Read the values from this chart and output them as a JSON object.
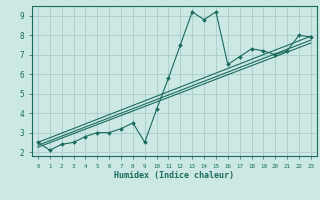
{
  "title": "",
  "xlabel": "Humidex (Indice chaleur)",
  "ylabel": "",
  "bg_color": "#cce8e4",
  "grid_color": "#aaccc8",
  "line_color": "#1a6b5a",
  "xlim": [
    -0.5,
    23.5
  ],
  "ylim": [
    1.8,
    9.5
  ],
  "xticks": [
    0,
    1,
    2,
    3,
    4,
    5,
    6,
    7,
    8,
    9,
    10,
    11,
    12,
    13,
    14,
    15,
    16,
    17,
    18,
    19,
    20,
    21,
    22,
    23
  ],
  "yticks": [
    2,
    3,
    4,
    5,
    6,
    7,
    8,
    9
  ],
  "curve_x": [
    0,
    1,
    2,
    3,
    4,
    5,
    6,
    7,
    8,
    9,
    10,
    11,
    12,
    13,
    14,
    15,
    16,
    17,
    18,
    19,
    20,
    21,
    22,
    23
  ],
  "curve_y": [
    2.5,
    2.1,
    2.4,
    2.5,
    2.8,
    3.0,
    3.0,
    3.2,
    3.5,
    2.5,
    4.2,
    5.8,
    7.5,
    9.2,
    8.8,
    9.2,
    6.5,
    6.9,
    7.3,
    7.2,
    7.0,
    7.2,
    8.0,
    7.9
  ],
  "reg_line1": [
    [
      0,
      23
    ],
    [
      2.25,
      7.6
    ]
  ],
  "reg_line2": [
    [
      0,
      23
    ],
    [
      2.35,
      7.75
    ]
  ],
  "reg_line3": [
    [
      0,
      23
    ],
    [
      2.5,
      7.95
    ]
  ]
}
